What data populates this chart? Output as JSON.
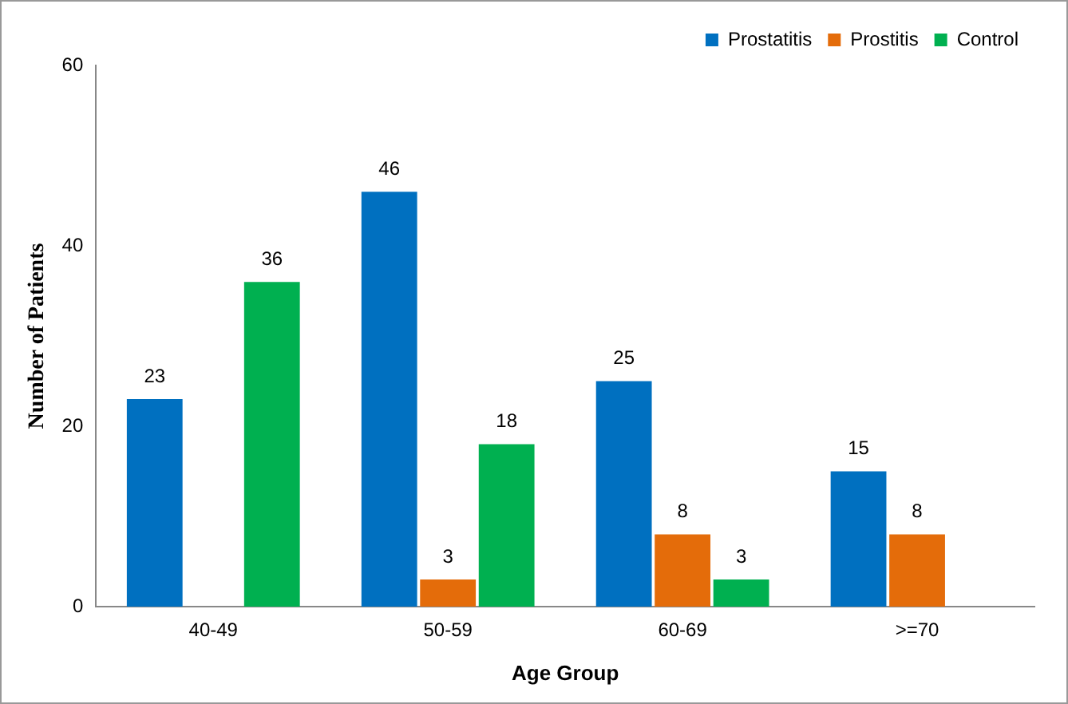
{
  "chart_data": {
    "type": "bar",
    "xlabel": "Age Group",
    "ylabel": "Number of Patients",
    "categories": [
      "40-49",
      "50-59",
      "60-69",
      ">=70"
    ],
    "series": [
      {
        "name": "Prostatitis",
        "color": "#0070c0",
        "values": [
          23,
          46,
          25,
          15
        ]
      },
      {
        "name": "Prostitis",
        "color": "#e46c0a",
        "values": [
          null,
          3,
          8,
          8
        ]
      },
      {
        "name": "Control",
        "color": "#00b050",
        "values": [
          36,
          18,
          3,
          null
        ]
      }
    ],
    "ylim": [
      0,
      60
    ],
    "yticks": [
      0,
      20,
      40,
      60
    ],
    "grid": false,
    "legend": "top right",
    "data_labels": true
  }
}
